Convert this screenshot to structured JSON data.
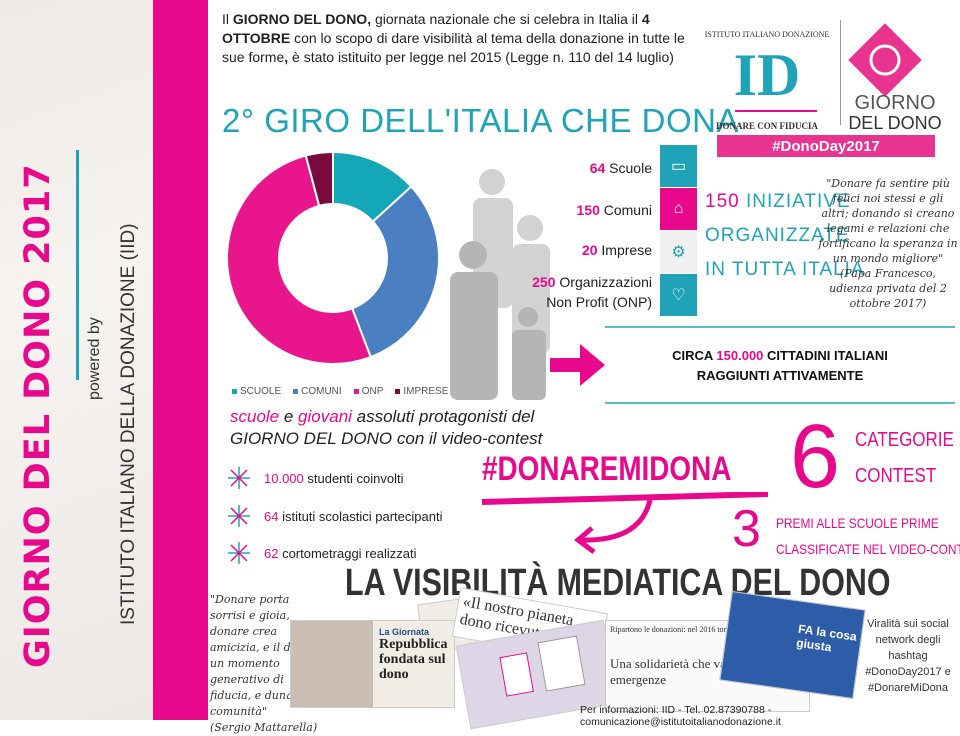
{
  "sidebar": {
    "title": "GIORNO DEL DONO 2017",
    "powered_by": "powered by",
    "institute": "ISTITUTO ITALIANO DELLA DONAZIONE (IID)"
  },
  "intro": {
    "p1": "Il ",
    "b1": "GIORNO DEL DONO,",
    "p2": " giornata nazionale che si celebra in Italia il ",
    "b2": "4 OTTOBRE",
    "p3": " con lo scopo di dare visibilità al tema della donazione in tutte le sue forme",
    "b3": ",",
    "p4": " è stato istituito per legge nel 2015 (Legge n. 110 del 14 luglio)"
  },
  "heading": "2° GIRO DELL'ITALIA CHE DONA",
  "logo": {
    "arc_text": "ISTITUTO ITALIANO DONAZIONE",
    "monogram": "ID",
    "tagline": "DONARE CON FIDUCIA",
    "brand_line1": "GIORNO",
    "brand_line2": "DEL DONO",
    "hashtag": "#DonoDay2017"
  },
  "chart_data": {
    "type": "pie",
    "categories": [
      "SCUOLE",
      "COMUNI",
      "ONP",
      "IMPRESE"
    ],
    "values": [
      64,
      150,
      250,
      20
    ],
    "colors": [
      "#13a7b8",
      "#4a7fc1",
      "#e8158c",
      "#7a0a3e"
    ],
    "legend": "bottom"
  },
  "stats": [
    {
      "num": "64",
      "label": " Scuole",
      "icon": "book-icon",
      "color": "#1fa3b8"
    },
    {
      "num": "150",
      "label": " Comuni",
      "icon": "town-hall-icon",
      "color": "#e8088c"
    },
    {
      "num": "20",
      "label": " Imprese",
      "icon": "gears-icon",
      "color": "#f0f0f0"
    },
    {
      "num": "250",
      "label": " Organizzazioni",
      "label2": "Non Profit (ONP)",
      "icon": "heart-icon",
      "color": "#1fa3b8"
    }
  ],
  "initiatives": {
    "num": "150",
    "l1": " INIZIATIVE",
    "l2": "ORGANIZZATE",
    "l3": "IN TUTTA ITALIA"
  },
  "quote_pope": {
    "text": "\"Donare fa sentire più felici noi stessi e gli altri; donando si creano legami e relazioni che fortificano la speranza in un mondo migliore\"",
    "author": "(Papa Francesco, udienza privata del 2 ottobre 2017)"
  },
  "reach": {
    "a": "CIRCA ",
    "num": "150.000",
    "b": " CITTADINI ITALIANI",
    "c": "RAGGIUNTI ATTIVAMENTE"
  },
  "subtitle": {
    "w1": "scuole",
    "w2": " e ",
    "w3": "giovani",
    "w4": " assoluti protagonisti del",
    "line2": "GIORNO DEL DONO",
    "line2b": " con il video-contest"
  },
  "bullets": [
    {
      "num": "10.000",
      "text": " studenti coinvolti"
    },
    {
      "num": "64",
      "text": " istituti scolastici partecipanti"
    },
    {
      "num": "62",
      "text": " cortometraggi realizzati"
    }
  ],
  "contest": {
    "hashtag": "#DONAREMIDONA",
    "six": "6",
    "cat1": "CATEGORIE",
    "cat2": "CONTEST",
    "three": "3",
    "premi1": "PREMI ALLE SCUOLE PRIME",
    "premi2": "CLASSIFICATE NEL VIDEO-CONTEST"
  },
  "media": {
    "heading": "LA VISIBILITÀ MEDIATICA DEL DONO",
    "quote": "\"Donare porta sorrisi e gioia, donare crea amicizia, e il dono è un momento generativo di fiducia, e dunque di comunità\"",
    "quote_author": "(Sergio Mattarella)",
    "clip1_head": "La Giornata",
    "clip1_title": "Repubblica fondata sul dono",
    "clip2_title": "«Il nostro pianeta dono ricevuto da co",
    "clip3_head": "Ripartono le donazioni: nel 2016 tornate ai livelli pre-crisi",
    "clip3_title": "Una solidarietà che va oltre le emergenze",
    "clip4_title": "FA la cosa giusta",
    "viral": "Viralità sui social network degli hashtag #DonoDay2017 e #DonareMiDona"
  },
  "footer": "Per informazioni: IID - Tel. 02.87390788 - comunicazione@istitutoitalianodonazione.it"
}
